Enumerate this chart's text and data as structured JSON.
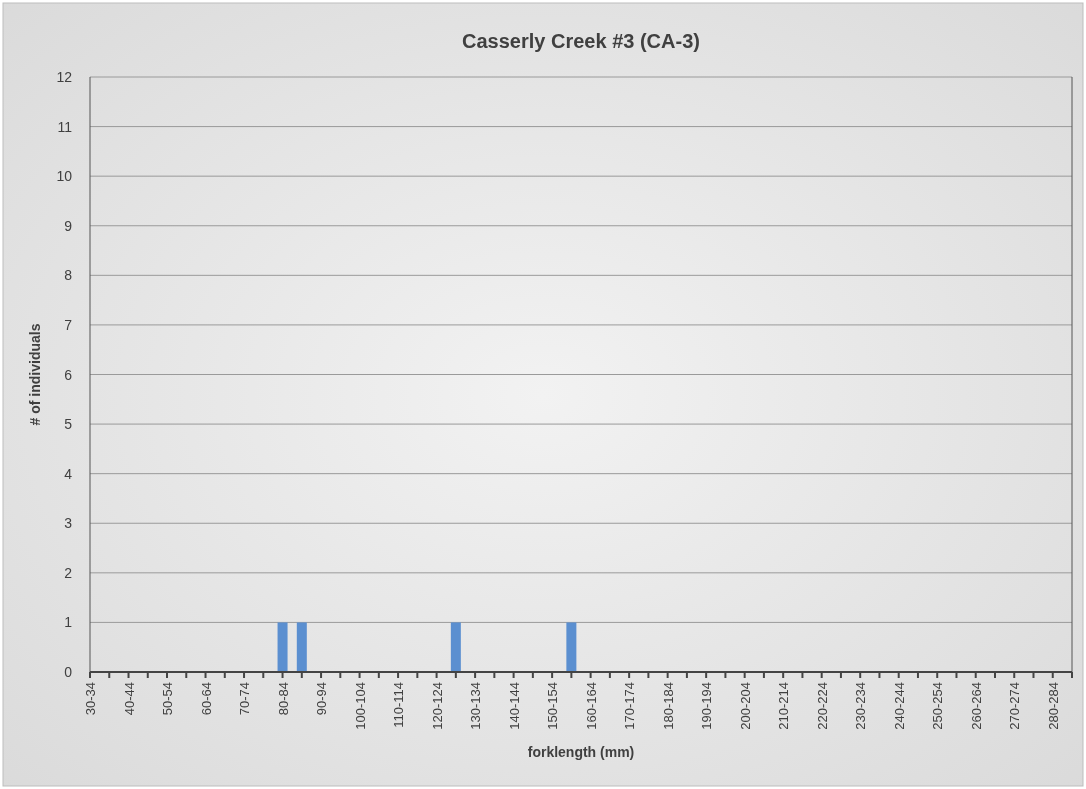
{
  "chart_data": {
    "type": "bar",
    "title": "Casserly Creek #3 (CA-3)",
    "xlabel": "forklength (mm)",
    "ylabel": "# of individuals",
    "categories": [
      "30-34",
      null,
      "40-44",
      null,
      "50-54",
      null,
      "60-64",
      null,
      "70-74",
      null,
      "80-84",
      null,
      "90-94",
      null,
      "100-104",
      null,
      "110-114",
      null,
      "120-124",
      null,
      "130-134",
      null,
      "140-144",
      null,
      "150-154",
      null,
      "160-164",
      null,
      "170-174",
      null,
      "180-184",
      null,
      "190-194",
      null,
      "200-204",
      null,
      "210-214",
      null,
      "220-224",
      null,
      "230-234",
      null,
      "240-244",
      null,
      "250-254",
      null,
      "260-264",
      null,
      "270-274",
      null,
      "280-284",
      null
    ],
    "values": [
      0,
      0,
      0,
      0,
      0,
      0,
      0,
      0,
      0,
      0,
      1,
      1,
      0,
      0,
      0,
      0,
      0,
      0,
      0,
      1,
      0,
      0,
      0,
      0,
      0,
      1,
      0,
      0,
      0,
      0,
      0,
      0,
      0,
      0,
      0,
      0,
      0,
      0,
      0,
      0,
      0,
      0,
      0,
      0,
      0,
      0,
      0,
      0,
      0,
      0,
      0,
      0
    ],
    "color": "#5b8fd0",
    "ylim": [
      0,
      12
    ],
    "yticks": [
      0,
      1,
      2,
      3,
      4,
      5,
      6,
      7,
      8,
      9,
      10,
      11,
      12
    ],
    "grid": "y"
  }
}
